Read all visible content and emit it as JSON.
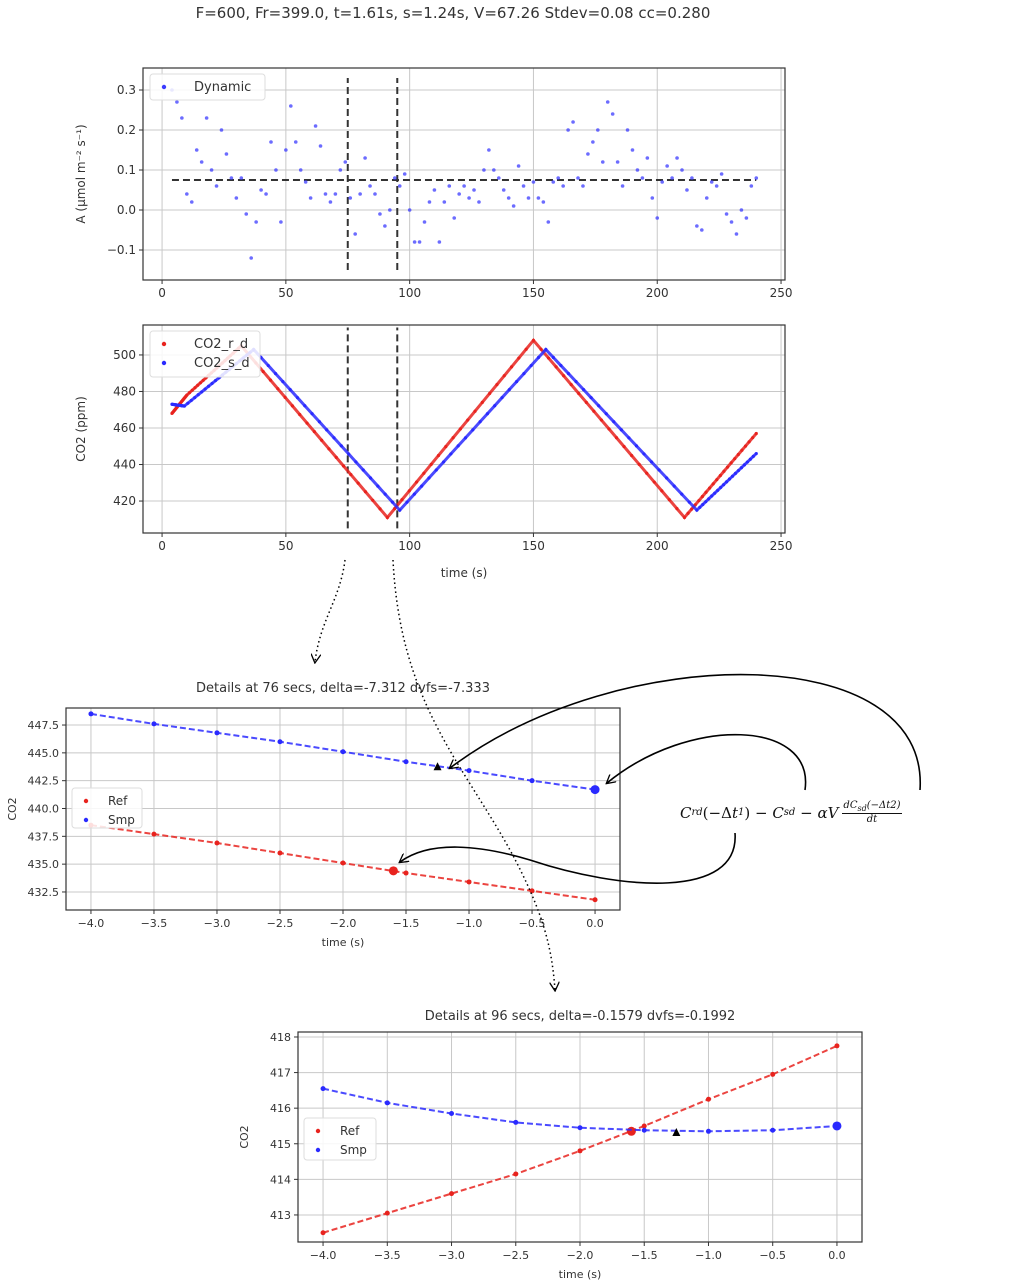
{
  "title": "F=600, Fr=399.0, t=1.61s, s=1.24s, V=67.26 Stdev=0.08 cc=0.280",
  "formula": {
    "c": "C",
    "rd": "rd",
    "arg1_open": "(−Δ",
    "t": "t",
    "sub1": "1",
    "arg1_close": ")",
    "minus1": " − ",
    "c2": "C",
    "sd": "sd",
    "minus2": " − ",
    "alpha_v": "αV",
    "num_d": "dC",
    "num_sub": "sd",
    "num_arg": "(−Δt2)",
    "den": "dt"
  },
  "chart_data": [
    {
      "type": "scatter",
      "title": "",
      "xlabel": "",
      "ylabel": "A (μmol m⁻² s⁻¹)",
      "xlim": [
        -7.7,
        251.6
      ],
      "ylim": [
        -0.175,
        0.355
      ],
      "xticks": [
        0,
        50,
        100,
        150,
        200,
        250
      ],
      "yticks": [
        -0.1,
        0.0,
        0.1,
        0.2,
        0.3
      ],
      "ytick_labels": [
        "−0.1",
        "0.0",
        "0.1",
        "0.2",
        "0.3"
      ],
      "grid": true,
      "legend": {
        "position": "top-left",
        "entries": [
          "Dynamic"
        ]
      },
      "series": [
        {
          "name": "Dynamic",
          "color": "#3b3bff",
          "x_start": 4,
          "x_step": 2,
          "y": [
            0.3,
            0.27,
            0.23,
            0.04,
            0.02,
            0.15,
            0.12,
            0.23,
            0.1,
            0.06,
            0.2,
            0.14,
            0.08,
            0.03,
            0.08,
            -0.01,
            -0.12,
            -0.03,
            0.05,
            0.04,
            0.17,
            0.1,
            -0.03,
            0.15,
            0.26,
            0.17,
            0.1,
            0.07,
            0.03,
            0.21,
            0.16,
            0.04,
            0.02,
            0.04,
            0.1,
            0.12,
            0.03,
            -0.06,
            0.04,
            0.13,
            0.06,
            0.04,
            -0.01,
            -0.04,
            0.0,
            0.08,
            0.06,
            0.09,
            0.0,
            -0.08,
            -0.08,
            -0.03,
            0.02,
            0.05,
            -0.08,
            0.02,
            0.06,
            -0.02,
            0.04,
            0.06,
            0.03,
            0.05,
            0.02,
            0.1,
            0.15,
            0.1,
            0.08,
            0.05,
            0.03,
            0.01,
            0.11,
            0.06,
            0.03,
            0.07,
            0.03,
            0.02,
            -0.03,
            0.07,
            0.08,
            0.06,
            0.2,
            0.22,
            0.08,
            0.06,
            0.14,
            0.17,
            0.2,
            0.12,
            0.27,
            0.24,
            0.12,
            0.06,
            0.2,
            0.15,
            0.1,
            0.08,
            0.13,
            0.03,
            -0.02,
            0.07,
            0.11,
            0.08,
            0.13,
            0.1,
            0.05,
            0.08,
            -0.04,
            -0.05,
            0.03,
            0.07,
            0.06,
            0.09,
            -0.01,
            -0.03,
            -0.06,
            0.0,
            -0.02,
            0.06,
            0.08
          ]
        }
      ],
      "hlines": [
        {
          "y": 0.075,
          "x": [
            4,
            240
          ],
          "style": "dashed"
        }
      ],
      "vlines": [
        {
          "x": 75,
          "y": [
            -0.15,
            0.33
          ]
        },
        {
          "x": 95,
          "y": [
            -0.15,
            0.33
          ]
        }
      ]
    },
    {
      "type": "line",
      "title": "",
      "xlabel": "time (s)",
      "ylabel": "CO2 (ppm)",
      "xlim": [
        -7.7,
        251.6
      ],
      "ylim": [
        402.5,
        516.4
      ],
      "xticks": [
        0,
        50,
        100,
        150,
        200,
        250
      ],
      "yticks": [
        420,
        440,
        460,
        480,
        500
      ],
      "grid": true,
      "legend": {
        "position": "top-left",
        "entries": [
          "CO2_r_d",
          "CO2_s_d"
        ]
      },
      "series": [
        {
          "name": "CO2_r_d",
          "color": "#e8231e",
          "x": [
            4,
            10,
            32,
            91,
            150,
            211,
            240
          ],
          "y": [
            468,
            478,
            505,
            411,
            508,
            411,
            457
          ]
        },
        {
          "name": "CO2_s_d",
          "color": "#2a2aff",
          "x": [
            4,
            9,
            37,
            96,
            155,
            216,
            240
          ],
          "y": [
            473,
            472,
            503,
            415,
            503,
            415,
            446
          ]
        }
      ],
      "vlines": [
        {
          "x": 75,
          "y": [
            405,
            515
          ]
        },
        {
          "x": 95,
          "y": [
            405,
            515
          ]
        }
      ]
    },
    {
      "type": "line",
      "title": "Details at 76 secs, delta=-7.312 dvfs=-7.333",
      "xlabel": "time (s)",
      "ylabel": "CO2",
      "xlim": [
        -4.198,
        0.198
      ],
      "ylim": [
        430.88,
        449.03
      ],
      "xticks": [
        -4.0,
        -3.5,
        -3.0,
        -2.5,
        -2.0,
        -1.5,
        -1.0,
        -0.5,
        0.0
      ],
      "xtick_labels": [
        "−4.0",
        "−3.5",
        "−3.0",
        "−2.5",
        "−2.0",
        "−1.5",
        "−1.0",
        "−0.5",
        "0.0"
      ],
      "yticks": [
        432.5,
        435.0,
        437.5,
        440.0,
        442.5,
        445.0,
        447.5
      ],
      "ytick_labels": [
        "432.5",
        "435.0",
        "437.5",
        "440.0",
        "442.5",
        "445.0",
        "447.5"
      ],
      "grid": true,
      "legend": {
        "position": "center-left",
        "entries": [
          "Ref",
          "Smp"
        ]
      },
      "series": [
        {
          "name": "Ref",
          "color": "#e8231e",
          "x": [
            -4,
            -3.5,
            -3,
            -2.5,
            -2,
            -1.5,
            -1,
            -0.5,
            0
          ],
          "y": [
            438.5,
            437.7,
            436.9,
            436.0,
            435.1,
            434.2,
            433.4,
            432.6,
            431.8
          ],
          "highlight": {
            "x": -1.6,
            "y": 434.4
          }
        },
        {
          "name": "Smp",
          "color": "#2a2aff",
          "x": [
            -4,
            -3.5,
            -3,
            -2.5,
            -2,
            -1.5,
            -1,
            -0.5,
            0
          ],
          "y": [
            448.5,
            447.6,
            446.8,
            446.0,
            445.1,
            444.2,
            443.4,
            442.5,
            441.7
          ],
          "highlight": {
            "x": 0,
            "y": 441.7
          }
        }
      ],
      "marker_triangle": {
        "x": -1.25,
        "y": 443.8
      }
    },
    {
      "type": "line",
      "title": "Details at 96 secs, delta=-0.1579 dvfs=-0.1992",
      "xlabel": "time (s)",
      "ylabel": "CO2",
      "xlim": [
        -4.195,
        0.195
      ],
      "ylim": [
        412.24,
        418.14
      ],
      "xticks": [
        -4.0,
        -3.5,
        -3.0,
        -2.5,
        -2.0,
        -1.5,
        -1.0,
        -0.5,
        0.0
      ],
      "xtick_labels": [
        "−4.0",
        "−3.5",
        "−3.0",
        "−2.5",
        "−2.0",
        "−1.5",
        "−1.0",
        "−0.5",
        "0.0"
      ],
      "yticks": [
        413,
        414,
        415,
        416,
        417,
        418
      ],
      "grid": true,
      "legend": {
        "position": "center-left",
        "entries": [
          "Ref",
          "Smp"
        ]
      },
      "series": [
        {
          "name": "Ref",
          "color": "#e8231e",
          "x": [
            -4,
            -3.5,
            -3,
            -2.5,
            -2,
            -1.5,
            -1,
            -0.5,
            0
          ],
          "y": [
            412.5,
            413.05,
            413.6,
            414.15,
            414.8,
            415.5,
            416.25,
            416.95,
            417.75
          ],
          "highlight": {
            "x": -1.6,
            "y": 415.35
          }
        },
        {
          "name": "Smp",
          "color": "#2a2aff",
          "x": [
            -4,
            -3.5,
            -3,
            -2.5,
            -2,
            -1.5,
            -1,
            -0.5,
            0
          ],
          "y": [
            416.55,
            416.15,
            415.85,
            415.6,
            415.45,
            415.38,
            415.35,
            415.38,
            415.5
          ],
          "highlight": {
            "x": 0,
            "y": 415.5
          }
        }
      ],
      "marker_triangle": {
        "x": -1.25,
        "y": 415.33
      }
    }
  ]
}
